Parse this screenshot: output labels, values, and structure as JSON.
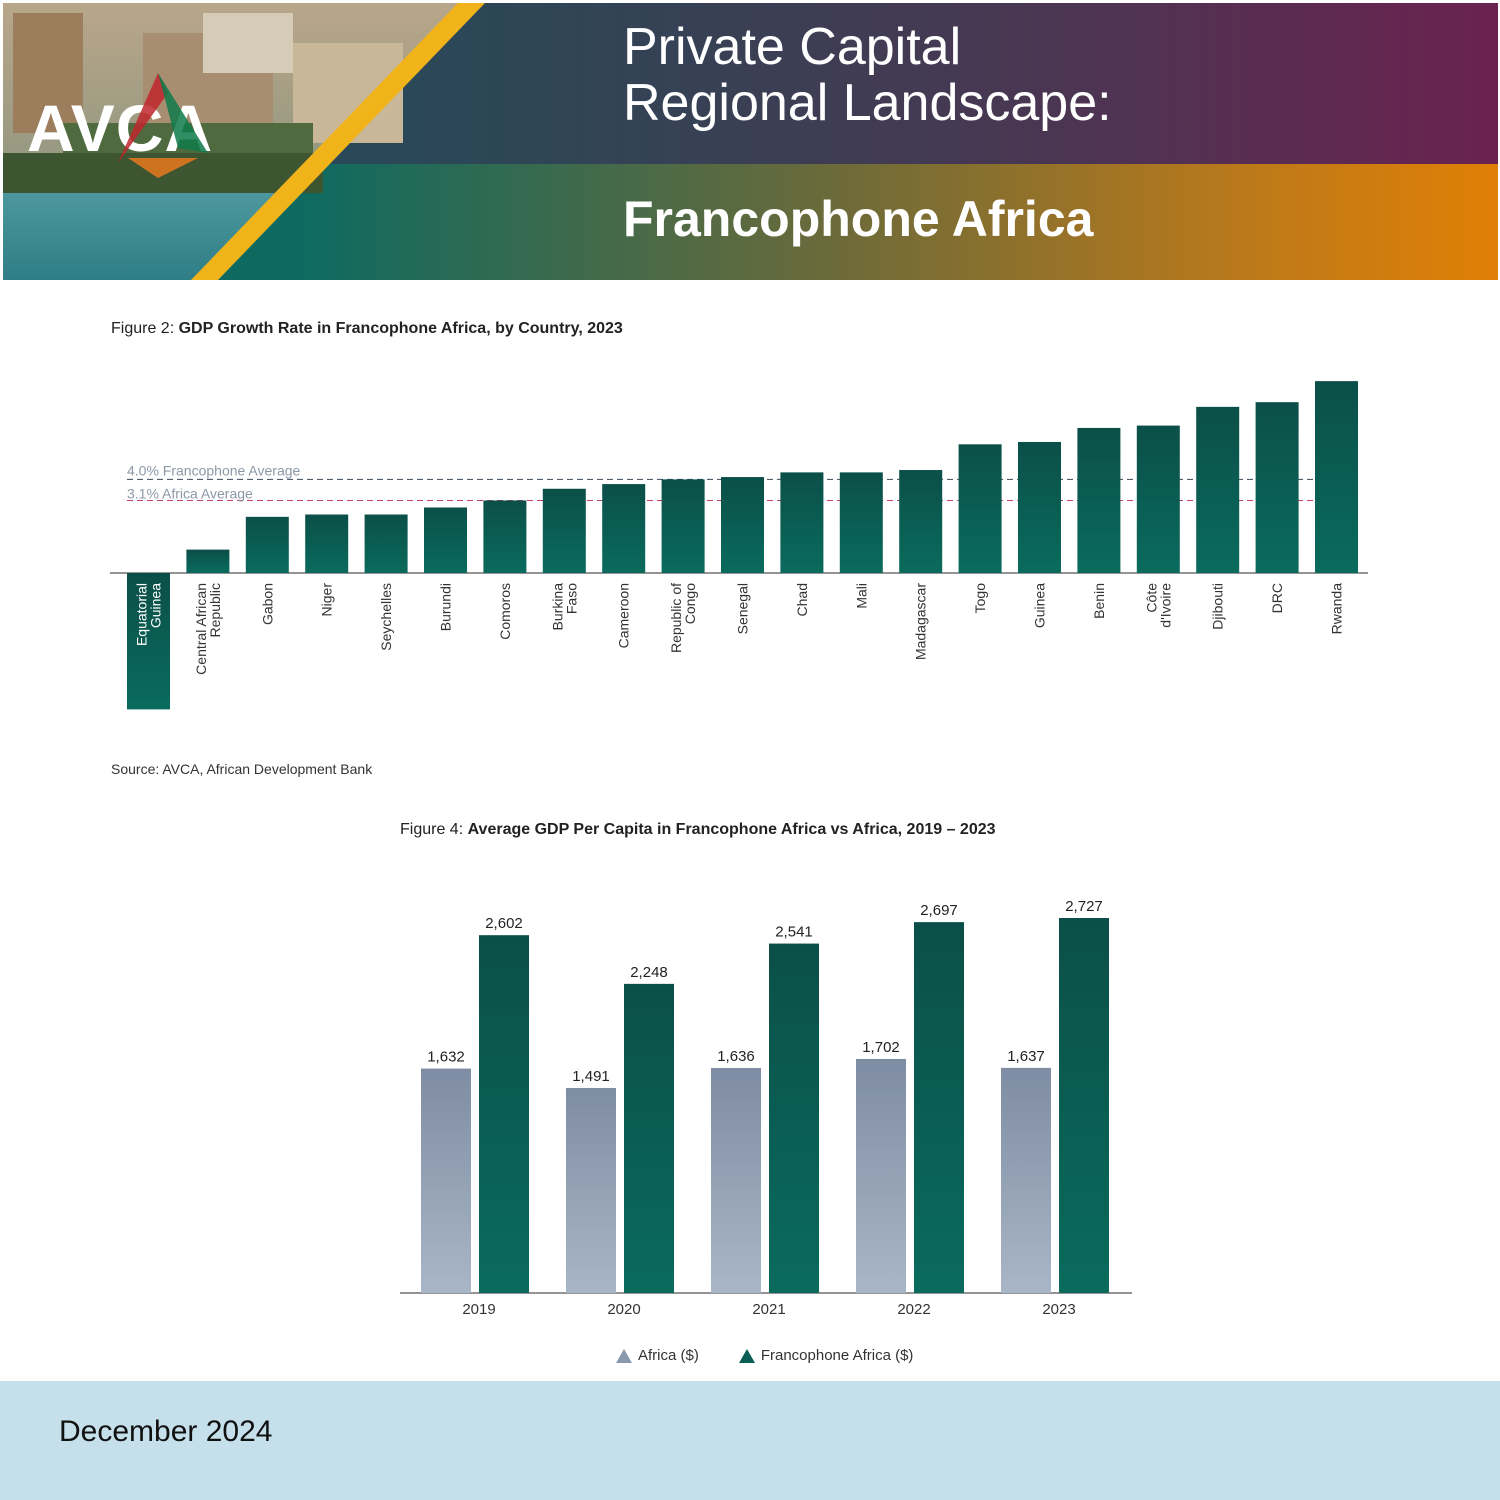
{
  "banner": {
    "logo": "AVCA",
    "title_line1": "Private Capital",
    "title_line2": "Regional Landscape:",
    "title_line3": "Francophone Africa"
  },
  "figure2": {
    "caption_prefix": "Figure 2: ",
    "caption_title": "GDP Growth Rate in Francophone Africa, by Country, 2023",
    "source": "Source: AVCA, African Development Bank"
  },
  "figure4": {
    "caption_prefix": "Figure 4: ",
    "caption_title": "Average GDP Per Capita in Francophone Africa vs Africa, 2019 – 2023"
  },
  "legend": {
    "africa": "Africa ($)",
    "francophone": "Francophone Africa ($)"
  },
  "footer": {
    "date": "December 2024"
  },
  "colors": {
    "bar_dark": "#0a5e54",
    "bar_grey": "#8a98ad",
    "francophone_line": "#3a4a5a",
    "africa_line": "#c2416a"
  },
  "chart_data": [
    {
      "type": "bar",
      "title": "GDP Growth Rate in Francophone Africa, by Country, 2023",
      "categories": [
        "Equatorial Guinea",
        "Central African Republic",
        "Gabon",
        "Niger",
        "Seychelles",
        "Burundi",
        "Comoros",
        "Burkina Faso",
        "Cameroon",
        "Republic of Congo",
        "Senegal",
        "Chad",
        "Mali",
        "Madagascar",
        "Togo",
        "Guinea",
        "Benin",
        "Côte d'Ivoire",
        "Djibouti",
        "DRC",
        "Rwanda"
      ],
      "values": [
        -6.2,
        1.0,
        2.4,
        2.5,
        2.5,
        2.8,
        3.1,
        3.6,
        3.8,
        4.0,
        4.1,
        4.3,
        4.3,
        4.4,
        5.5,
        5.6,
        6.2,
        6.3,
        7.1,
        7.3,
        8.2
      ],
      "reference_lines": [
        {
          "label": "4.0% Francophone Average",
          "value": 4.0
        },
        {
          "label": "3.1% Africa Average",
          "value": 3.1
        }
      ],
      "ylabel": "",
      "grid": false
    },
    {
      "type": "bar",
      "title": "Average GDP Per Capita in Francophone Africa vs Africa, 2019 – 2023",
      "categories": [
        "2019",
        "2020",
        "2021",
        "2022",
        "2023"
      ],
      "series": [
        {
          "name": "Africa ($)",
          "values": [
            1632,
            1491,
            1636,
            1702,
            1637
          ],
          "labels": [
            "1,632",
            "1,491",
            "1,636",
            "1,702",
            "1,637"
          ]
        },
        {
          "name": "Francophone Africa ($)",
          "values": [
            2602,
            2248,
            2541,
            2697,
            2727
          ],
          "labels": [
            "2,602",
            "2,248",
            "2,541",
            "2,697",
            "2,727"
          ]
        }
      ],
      "ylim": [
        0,
        2800
      ],
      "legend": "bottom",
      "grid": false
    }
  ]
}
